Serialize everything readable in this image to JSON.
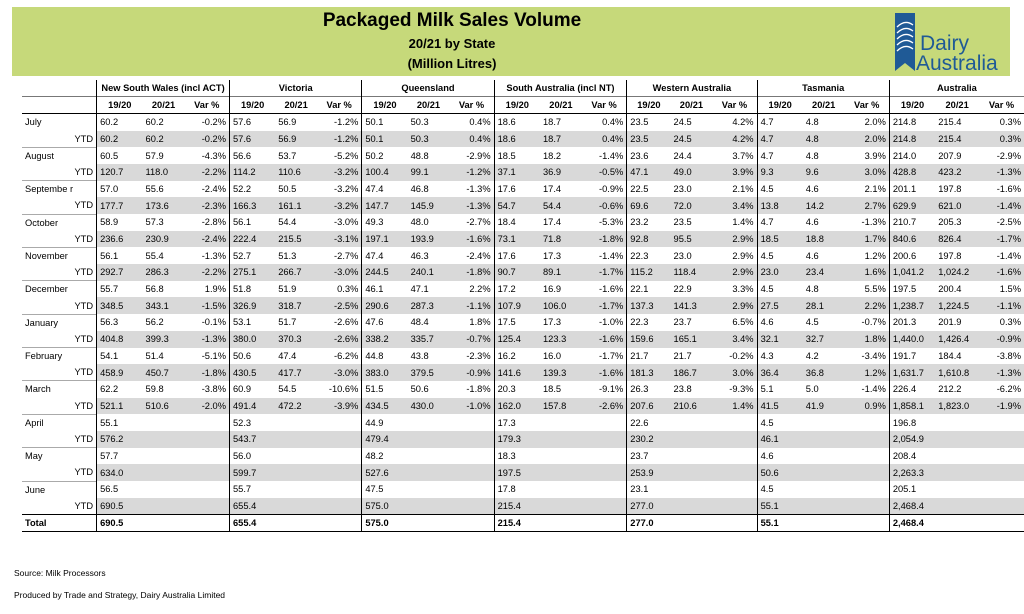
{
  "header": {
    "title": "Packaged Milk Sales Volume",
    "subtitle": "20/21 by State",
    "unit": "(Million Litres)"
  },
  "logo": {
    "line1": "Dairy",
    "line2": "Australia"
  },
  "regions": [
    "New South Wales (incl ACT)",
    "Victoria",
    "Queensland",
    "South Australia (incl NT)",
    "Western Australia",
    "Tasmania",
    "Australia"
  ],
  "col_headers": [
    "19/20",
    "20/21",
    "Var %"
  ],
  "rows": [
    {
      "label": "July",
      "cells": [
        "60.2",
        "60.2",
        "-0.2%",
        "57.6",
        "56.9",
        "-1.2%",
        "50.1",
        "50.3",
        "0.4%",
        "18.6",
        "18.7",
        "0.4%",
        "23.5",
        "24.5",
        "4.2%",
        "4.7",
        "4.8",
        "2.0%",
        "214.8",
        "215.4",
        "0.3%"
      ]
    },
    {
      "label": "YTD",
      "cells": [
        "60.2",
        "60.2",
        "-0.2%",
        "57.6",
        "56.9",
        "-1.2%",
        "50.1",
        "50.3",
        "0.4%",
        "18.6",
        "18.7",
        "0.4%",
        "23.5",
        "24.5",
        "4.2%",
        "4.7",
        "4.8",
        "2.0%",
        "214.8",
        "215.4",
        "0.3%"
      ]
    },
    {
      "label": "August",
      "cells": [
        "60.5",
        "57.9",
        "-4.3%",
        "56.6",
        "53.7",
        "-5.2%",
        "50.2",
        "48.8",
        "-2.9%",
        "18.5",
        "18.2",
        "-1.4%",
        "23.6",
        "24.4",
        "3.7%",
        "4.7",
        "4.8",
        "3.9%",
        "214.0",
        "207.9",
        "-2.9%"
      ]
    },
    {
      "label": "YTD",
      "cells": [
        "120.7",
        "118.0",
        "-2.2%",
        "114.2",
        "110.6",
        "-3.2%",
        "100.4",
        "99.1",
        "-1.2%",
        "37.1",
        "36.9",
        "-0.5%",
        "47.1",
        "49.0",
        "3.9%",
        "9.3",
        "9.6",
        "3.0%",
        "428.8",
        "423.2",
        "-1.3%"
      ]
    },
    {
      "label": "Septembe r",
      "cells": [
        "57.0",
        "55.6",
        "-2.4%",
        "52.2",
        "50.5",
        "-3.2%",
        "47.4",
        "46.8",
        "-1.3%",
        "17.6",
        "17.4",
        "-0.9%",
        "22.5",
        "23.0",
        "2.1%",
        "4.5",
        "4.6",
        "2.1%",
        "201.1",
        "197.8",
        "-1.6%"
      ]
    },
    {
      "label": "YTD",
      "cells": [
        "177.7",
        "173.6",
        "-2.3%",
        "166.3",
        "161.1",
        "-3.2%",
        "147.7",
        "145.9",
        "-1.3%",
        "54.7",
        "54.4",
        "-0.6%",
        "69.6",
        "72.0",
        "3.4%",
        "13.8",
        "14.2",
        "2.7%",
        "629.9",
        "621.0",
        "-1.4%"
      ]
    },
    {
      "label": "October",
      "cells": [
        "58.9",
        "57.3",
        "-2.8%",
        "56.1",
        "54.4",
        "-3.0%",
        "49.3",
        "48.0",
        "-2.7%",
        "18.4",
        "17.4",
        "-5.3%",
        "23.2",
        "23.5",
        "1.4%",
        "4.7",
        "4.6",
        "-1.3%",
        "210.7",
        "205.3",
        "-2.5%"
      ]
    },
    {
      "label": "YTD",
      "cells": [
        "236.6",
        "230.9",
        "-2.4%",
        "222.4",
        "215.5",
        "-3.1%",
        "197.1",
        "193.9",
        "-1.6%",
        "73.1",
        "71.8",
        "-1.8%",
        "92.8",
        "95.5",
        "2.9%",
        "18.5",
        "18.8",
        "1.7%",
        "840.6",
        "826.4",
        "-1.7%"
      ]
    },
    {
      "label": "November",
      "cells": [
        "56.1",
        "55.4",
        "-1.3%",
        "52.7",
        "51.3",
        "-2.7%",
        "47.4",
        "46.3",
        "-2.4%",
        "17.6",
        "17.3",
        "-1.4%",
        "22.3",
        "23.0",
        "2.9%",
        "4.5",
        "4.6",
        "1.2%",
        "200.6",
        "197.8",
        "-1.4%"
      ]
    },
    {
      "label": "YTD",
      "cells": [
        "292.7",
        "286.3",
        "-2.2%",
        "275.1",
        "266.7",
        "-3.0%",
        "244.5",
        "240.1",
        "-1.8%",
        "90.7",
        "89.1",
        "-1.7%",
        "115.2",
        "118.4",
        "2.9%",
        "23.0",
        "23.4",
        "1.6%",
        "1,041.2",
        "1,024.2",
        "-1.6%"
      ]
    },
    {
      "label": "December",
      "cells": [
        "55.7",
        "56.8",
        "1.9%",
        "51.8",
        "51.9",
        "0.3%",
        "46.1",
        "47.1",
        "2.2%",
        "17.2",
        "16.9",
        "-1.6%",
        "22.1",
        "22.9",
        "3.3%",
        "4.5",
        "4.8",
        "5.5%",
        "197.5",
        "200.4",
        "1.5%"
      ]
    },
    {
      "label": "YTD",
      "cells": [
        "348.5",
        "343.1",
        "-1.5%",
        "326.9",
        "318.7",
        "-2.5%",
        "290.6",
        "287.3",
        "-1.1%",
        "107.9",
        "106.0",
        "-1.7%",
        "137.3",
        "141.3",
        "2.9%",
        "27.5",
        "28.1",
        "2.2%",
        "1,238.7",
        "1,224.5",
        "-1.1%"
      ]
    },
    {
      "label": "January",
      "cells": [
        "56.3",
        "56.2",
        "-0.1%",
        "53.1",
        "51.7",
        "-2.6%",
        "47.6",
        "48.4",
        "1.8%",
        "17.5",
        "17.3",
        "-1.0%",
        "22.3",
        "23.7",
        "6.5%",
        "4.6",
        "4.5",
        "-0.7%",
        "201.3",
        "201.9",
        "0.3%"
      ]
    },
    {
      "label": "YTD",
      "cells": [
        "404.8",
        "399.3",
        "-1.3%",
        "380.0",
        "370.3",
        "-2.6%",
        "338.2",
        "335.7",
        "-0.7%",
        "125.4",
        "123.3",
        "-1.6%",
        "159.6",
        "165.1",
        "3.4%",
        "32.1",
        "32.7",
        "1.8%",
        "1,440.0",
        "1,426.4",
        "-0.9%"
      ]
    },
    {
      "label": "February",
      "cells": [
        "54.1",
        "51.4",
        "-5.1%",
        "50.6",
        "47.4",
        "-6.2%",
        "44.8",
        "43.8",
        "-2.3%",
        "16.2",
        "16.0",
        "-1.7%",
        "21.7",
        "21.7",
        "-0.2%",
        "4.3",
        "4.2",
        "-3.4%",
        "191.7",
        "184.4",
        "-3.8%"
      ]
    },
    {
      "label": "YTD",
      "cells": [
        "458.9",
        "450.7",
        "-1.8%",
        "430.5",
        "417.7",
        "-3.0%",
        "383.0",
        "379.5",
        "-0.9%",
        "141.6",
        "139.3",
        "-1.6%",
        "181.3",
        "186.7",
        "3.0%",
        "36.4",
        "36.8",
        "1.2%",
        "1,631.7",
        "1,610.8",
        "-1.3%"
      ]
    },
    {
      "label": "March",
      "cells": [
        "62.2",
        "59.8",
        "-3.8%",
        "60.9",
        "54.5",
        "-10.6%",
        "51.5",
        "50.6",
        "-1.8%",
        "20.3",
        "18.5",
        "-9.1%",
        "26.3",
        "23.8",
        "-9.3%",
        "5.1",
        "5.0",
        "-1.4%",
        "226.4",
        "212.2",
        "-6.2%"
      ]
    },
    {
      "label": "YTD",
      "cells": [
        "521.1",
        "510.6",
        "-2.0%",
        "491.4",
        "472.2",
        "-3.9%",
        "434.5",
        "430.0",
        "-1.0%",
        "162.0",
        "157.8",
        "-2.6%",
        "207.6",
        "210.6",
        "1.4%",
        "41.5",
        "41.9",
        "0.9%",
        "1,858.1",
        "1,823.0",
        "-1.9%"
      ]
    },
    {
      "label": "April",
      "cells": [
        "55.1",
        "",
        "",
        "52.3",
        "",
        "",
        "44.9",
        "",
        "",
        "17.3",
        "",
        "",
        "22.6",
        "",
        "",
        "4.5",
        "",
        "",
        "196.8",
        "",
        ""
      ]
    },
    {
      "label": "YTD",
      "cells": [
        "576.2",
        "",
        "",
        "543.7",
        "",
        "",
        "479.4",
        "",
        "",
        "179.3",
        "",
        "",
        "230.2",
        "",
        "",
        "46.1",
        "",
        "",
        "2,054.9",
        "",
        ""
      ]
    },
    {
      "label": "May",
      "cells": [
        "57.7",
        "",
        "",
        "56.0",
        "",
        "",
        "48.2",
        "",
        "",
        "18.3",
        "",
        "",
        "23.7",
        "",
        "",
        "4.6",
        "",
        "",
        "208.4",
        "",
        ""
      ]
    },
    {
      "label": "YTD",
      "cells": [
        "634.0",
        "",
        "",
        "599.7",
        "",
        "",
        "527.6",
        "",
        "",
        "197.5",
        "",
        "",
        "253.9",
        "",
        "",
        "50.6",
        "",
        "",
        "2,263.3",
        "",
        ""
      ]
    },
    {
      "label": "June",
      "cells": [
        "56.5",
        "",
        "",
        "55.7",
        "",
        "",
        "47.5",
        "",
        "",
        "17.8",
        "",
        "",
        "23.1",
        "",
        "",
        "4.5",
        "",
        "",
        "205.1",
        "",
        ""
      ]
    },
    {
      "label": "YTD",
      "cells": [
        "690.5",
        "",
        "",
        "655.4",
        "",
        "",
        "575.0",
        "",
        "",
        "215.4",
        "",
        "",
        "277.0",
        "",
        "",
        "55.1",
        "",
        "",
        "2,468.4",
        "",
        ""
      ]
    },
    {
      "label": "Total",
      "cells": [
        "690.5",
        "",
        "",
        "655.4",
        "",
        "",
        "575.0",
        "",
        "",
        "215.4",
        "",
        "",
        "277.0",
        "",
        "",
        "55.1",
        "",
        "",
        "2,468.4",
        "",
        ""
      ]
    }
  ],
  "footer": {
    "source": "Source: Milk Processors",
    "produced": "Produced by Trade and Strategy, Dairy Australia Limited"
  },
  "colors": {
    "banner": "#c6d97a",
    "ytd_shade": "#d9d9d9",
    "logo_blue": "#1f5a96"
  }
}
